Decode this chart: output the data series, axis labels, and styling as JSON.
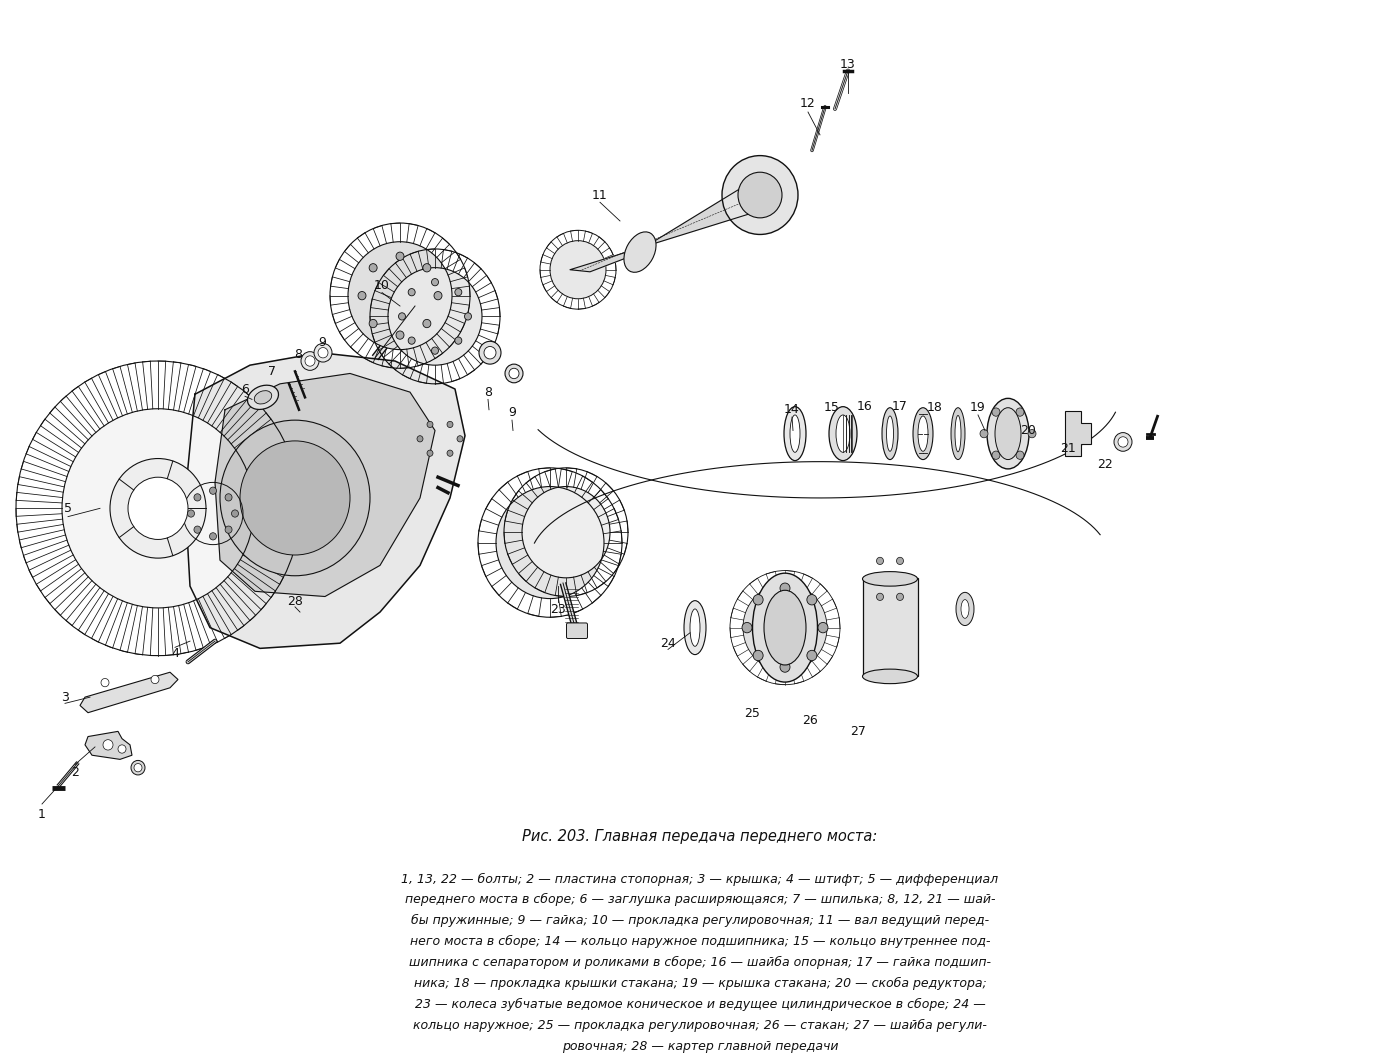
{
  "background_color": "#ffffff",
  "fig_width": 14.0,
  "fig_height": 10.64,
  "title": "Рис. 203. Главная передача переднего моста:",
  "title_fontsize": 10.5,
  "caption_lines": [
    "1, 13, 22 — болты; 2 — пластина стопорная; 3 — крышка; 4 — штифт; 5 — дифференциал",
    "переднего моста в сборе; 6 — заглушка расширяющаяся; 7 — шпилька; 8, 12, 21 — шай-",
    "бы пружинные; 9 — гайка; 10 — прокладка регулировочная; 11 — вал ведущий перед-",
    "него моста в сборе; 14 — кольцо наружное подшипника; 15 — кольцо внутреннее под-",
    "шипника с сепаратором и роликами в сборе; 16 — шайба опорная; 17 — гайка подшип-",
    "ника; 18 — прокладка крышки стакана; 19 — крышка стакана; 20 — скоба редуктора;",
    "23 — колеса зубчатые ведомое коническое и ведущее цилиндрическое в сборе; 24 —",
    "кольцо наружное; 25 — прокладка регулировочная; 26 — стакан; 27 — шайба регули-",
    "ровочная; 28 — картер главной передачи"
  ],
  "caption_fontsize": 9.0,
  "lc": "#111111",
  "lc_light": "#888888"
}
